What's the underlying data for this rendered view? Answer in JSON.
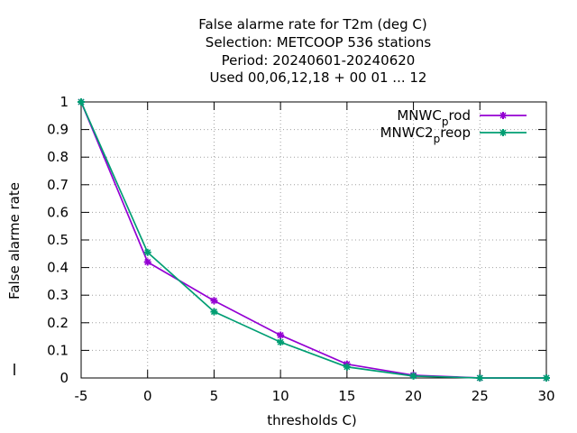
{
  "chart_data": {
    "type": "line",
    "title_lines": [
      "False alarme rate  for T2m (deg C)",
      "Selection: METCOOP    536 stations",
      "Period: 20240601-20240620",
      "Used  00,06,12,18 + 00 01 ... 12"
    ],
    "xlabel": "thresholds C)",
    "ylabel": "False alarme rate",
    "xlim": [
      -5,
      30
    ],
    "ylim": [
      0,
      1
    ],
    "xticks": [
      -5,
      0,
      5,
      10,
      15,
      20,
      25,
      30
    ],
    "yticks": [
      0,
      0.1,
      0.2,
      0.3,
      0.4,
      0.5,
      0.6,
      0.7,
      0.8,
      0.9,
      1
    ],
    "grid": true,
    "legend_position": "top-right",
    "x": [
      -5,
      0,
      5,
      10,
      15,
      20,
      25,
      30
    ],
    "series": [
      {
        "name_main": "MNWC",
        "name_sub": "p",
        "name_rest": "rod",
        "color": "#9400d3",
        "values": [
          1.0,
          0.42,
          0.28,
          0.155,
          0.05,
          0.01,
          0.0,
          0.0
        ]
      },
      {
        "name_main": "MNWC2",
        "name_sub": "p",
        "name_rest": "reop",
        "color": "#009e73",
        "values": [
          1.0,
          0.455,
          0.24,
          0.13,
          0.04,
          0.007,
          0.0,
          0.0
        ]
      }
    ]
  }
}
